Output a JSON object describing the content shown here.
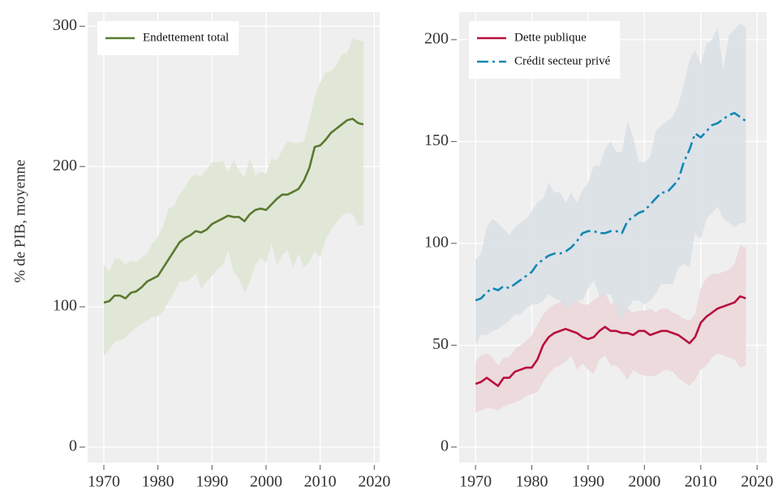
{
  "chart_data": [
    {
      "type": "line",
      "ylabel": "% de PIB, moyenne",
      "grid": true,
      "legend": "upper left",
      "xlim": [
        1967,
        2021
      ],
      "ylim": [
        -11,
        310
      ],
      "xticks": [
        1970,
        1980,
        1990,
        2000,
        2010,
        2020
      ],
      "yticks": [
        0,
        100,
        200,
        300
      ],
      "x": [
        1970,
        1971,
        1972,
        1973,
        1974,
        1975,
        1976,
        1977,
        1978,
        1979,
        1980,
        1981,
        1982,
        1983,
        1984,
        1985,
        1986,
        1987,
        1988,
        1989,
        1990,
        1991,
        1992,
        1993,
        1994,
        1995,
        1996,
        1997,
        1998,
        1999,
        2000,
        2001,
        2002,
        2003,
        2004,
        2005,
        2006,
        2007,
        2008,
        2009,
        2010,
        2011,
        2012,
        2013,
        2014,
        2015,
        2016,
        2017,
        2018
      ],
      "series": [
        {
          "name": "Endettement total",
          "color": "#5a7a2e",
          "band_color": "#dde5d2",
          "linestyle": "solid",
          "values": [
            103,
            104,
            108,
            108,
            106,
            110,
            111,
            114,
            118,
            120,
            122,
            128,
            134,
            140,
            146,
            149,
            151,
            154,
            153,
            155,
            159,
            161,
            163,
            165,
            164,
            164,
            161,
            166,
            169,
            170,
            169,
            173,
            177,
            180,
            180,
            182,
            184,
            190,
            199,
            214,
            215,
            219,
            224,
            227,
            230,
            233,
            234,
            231,
            230
          ],
          "upper": [
            130,
            125,
            134,
            134,
            130,
            133,
            132,
            135,
            138,
            145,
            150,
            158,
            170,
            172,
            180,
            185,
            192,
            194,
            193,
            198,
            203,
            203,
            204,
            196,
            205,
            197,
            192,
            206,
            194,
            196,
            195,
            206,
            204,
            212,
            218,
            217,
            217,
            218,
            232,
            250,
            260,
            267,
            268,
            272,
            280,
            281,
            291,
            290,
            289
          ],
          "lower": [
            65,
            70,
            75,
            76,
            78,
            82,
            85,
            88,
            90,
            93,
            93,
            97,
            104,
            110,
            118,
            118,
            120,
            124,
            113,
            118,
            122,
            127,
            130,
            140,
            125,
            120,
            110,
            118,
            130,
            135,
            131,
            145,
            130,
            137,
            140,
            128,
            138,
            128,
            132,
            140,
            135,
            148,
            155,
            160,
            165,
            167,
            166,
            158,
            158
          ]
        }
      ]
    },
    {
      "type": "line",
      "grid": true,
      "legend": "upper left",
      "xlim": [
        1967.1,
        2021.7
      ],
      "ylim": [
        -7.6,
        213.5
      ],
      "xticks": [
        1970,
        1980,
        1990,
        2000,
        2010,
        2020
      ],
      "yticks": [
        0,
        50,
        100,
        150,
        200
      ],
      "x": [
        1970,
        1971,
        1972,
        1973,
        1974,
        1975,
        1976,
        1977,
        1978,
        1979,
        1980,
        1981,
        1982,
        1983,
        1984,
        1985,
        1986,
        1987,
        1988,
        1989,
        1990,
        1991,
        1992,
        1993,
        1994,
        1995,
        1996,
        1997,
        1998,
        1999,
        2000,
        2001,
        2002,
        2003,
        2004,
        2005,
        2006,
        2007,
        2008,
        2009,
        2010,
        2011,
        2012,
        2013,
        2014,
        2015,
        2016,
        2017,
        2018
      ],
      "series": [
        {
          "name": "Dette publique",
          "color": "#b8103c",
          "band_color": "#ebd6d8",
          "linestyle": "solid",
          "values": [
            31,
            32,
            34,
            32,
            30,
            34,
            34,
            37,
            38,
            39,
            39,
            43,
            50,
            54,
            56,
            57,
            58,
            57,
            56,
            54,
            53,
            54,
            57,
            59,
            57,
            57,
            56,
            56,
            55,
            57,
            57,
            55,
            56,
            57,
            57,
            56,
            55,
            53,
            51,
            54,
            61,
            64,
            66,
            68,
            69,
            70,
            71,
            74,
            73
          ],
          "upper": [
            42,
            45,
            46,
            44,
            40,
            44,
            44,
            48,
            50,
            52,
            55,
            60,
            65,
            68,
            70,
            71,
            72,
            70,
            72,
            70,
            70,
            72,
            74,
            76,
            70,
            72,
            68,
            68,
            66,
            67,
            67,
            68,
            66,
            68,
            68,
            66,
            65,
            63,
            62,
            65,
            78,
            83,
            85,
            85,
            86,
            87,
            90,
            99,
            98
          ],
          "lower": [
            17,
            18,
            19,
            19,
            18,
            20,
            21,
            22,
            23,
            25,
            26,
            27,
            32,
            36,
            39,
            40,
            42,
            45,
            38,
            41,
            38,
            36,
            43,
            45,
            40,
            40,
            37,
            33,
            38,
            36,
            35,
            35,
            35,
            37,
            38,
            37,
            34,
            32,
            30,
            33,
            38,
            40,
            44,
            46,
            45,
            44,
            43,
            39,
            40
          ]
        },
        {
          "name": "Crédit secteur privé",
          "color": "#1287b5",
          "band_color": "#d9dfe5",
          "linestyle": "dashdot",
          "values": [
            72,
            73,
            76,
            78,
            77,
            79,
            78,
            80,
            82,
            84,
            86,
            90,
            92,
            94,
            95,
            95,
            96,
            98,
            101,
            105,
            106,
            106,
            105,
            105,
            106,
            106,
            105,
            111,
            113,
            115,
            116,
            119,
            122,
            125,
            125,
            128,
            131,
            140,
            146,
            154,
            152,
            155,
            158,
            159,
            161,
            163,
            164,
            162,
            160
          ],
          "upper": [
            92,
            95,
            108,
            112,
            110,
            107,
            104,
            108,
            110,
            112,
            116,
            120,
            122,
            130,
            125,
            125,
            120,
            125,
            120,
            126,
            130,
            138,
            138,
            146,
            150,
            145,
            145,
            160,
            152,
            140,
            140,
            142,
            155,
            158,
            160,
            162,
            168,
            178,
            190,
            195,
            188,
            198,
            200,
            206,
            185,
            202,
            205,
            208,
            206
          ],
          "lower": [
            50,
            55,
            55,
            57,
            58,
            60,
            62,
            65,
            65,
            68,
            70,
            70,
            72,
            75,
            73,
            72,
            68,
            70,
            72,
            72,
            78,
            82,
            74,
            75,
            75,
            68,
            62,
            68,
            72,
            72,
            70,
            72,
            75,
            80,
            80,
            80,
            88,
            90,
            88,
            105,
            102,
            112,
            115,
            118,
            112,
            110,
            108,
            110,
            110
          ]
        }
      ]
    }
  ]
}
